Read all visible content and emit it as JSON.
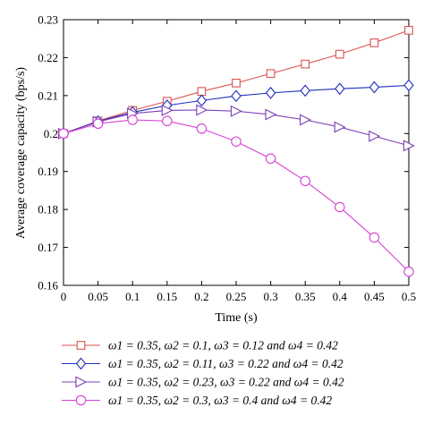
{
  "chart_data": {
    "type": "line",
    "title": "",
    "xlabel": "Time (s)",
    "ylabel": "Average coverage capacity (bps/s)",
    "xlim": [
      0,
      0.5
    ],
    "ylim": [
      0.16,
      0.23
    ],
    "x_ticks": [
      "0",
      "0.05",
      "0.1",
      "0.15",
      "0.2",
      "0.25",
      "0.3",
      "0.35",
      "0.4",
      "0.45",
      "0.5"
    ],
    "y_ticks": [
      "0.16",
      "0.17",
      "0.18",
      "0.19",
      "0.2",
      "0.21",
      "0.22",
      "0.23"
    ],
    "x": [
      0,
      0.05,
      0.1,
      0.15,
      0.2,
      0.25,
      0.3,
      0.35,
      0.4,
      0.45,
      0.5
    ],
    "grid": false,
    "legend_position": "bottom",
    "series": [
      {
        "name": "ω1 = 0.35, ω2 = 0.1, ω3 = 0.12 and ω4 = 0.42",
        "color": "#d9534f",
        "marker": "square",
        "values": [
          0.2,
          0.2033,
          0.2061,
          0.2085,
          0.2111,
          0.2133,
          0.2158,
          0.2183,
          0.2209,
          0.2239,
          0.2272
        ]
      },
      {
        "name": "ω1 = 0.35, ω2 = 0.11, ω3 = 0.22 and ω4 = 0.42",
        "color": "#1f2fbf",
        "marker": "diamond",
        "values": [
          0.2,
          0.2032,
          0.2056,
          0.2074,
          0.2087,
          0.2099,
          0.2107,
          0.2113,
          0.2118,
          0.2122,
          0.2127
        ]
      },
      {
        "name": "ω1 = 0.35, ω2 = 0.23, ω3 = 0.22 and ω4 = 0.42",
        "color": "#7b3fb8",
        "marker": "triangle-right",
        "values": [
          0.2,
          0.2031,
          0.2053,
          0.2061,
          0.2062,
          0.2059,
          0.205,
          0.2036,
          0.2017,
          0.1993,
          0.1968
        ]
      },
      {
        "name": "ω1 = 0.35, ω2 = 0.3, ω3 = 0.4 and ω4 = 0.42",
        "color": "#d63fd6",
        "marker": "circle",
        "values": [
          0.2,
          0.2026,
          0.2036,
          0.2033,
          0.2013,
          0.1979,
          0.1934,
          0.1875,
          0.1806,
          0.1726,
          0.1636
        ]
      }
    ]
  }
}
